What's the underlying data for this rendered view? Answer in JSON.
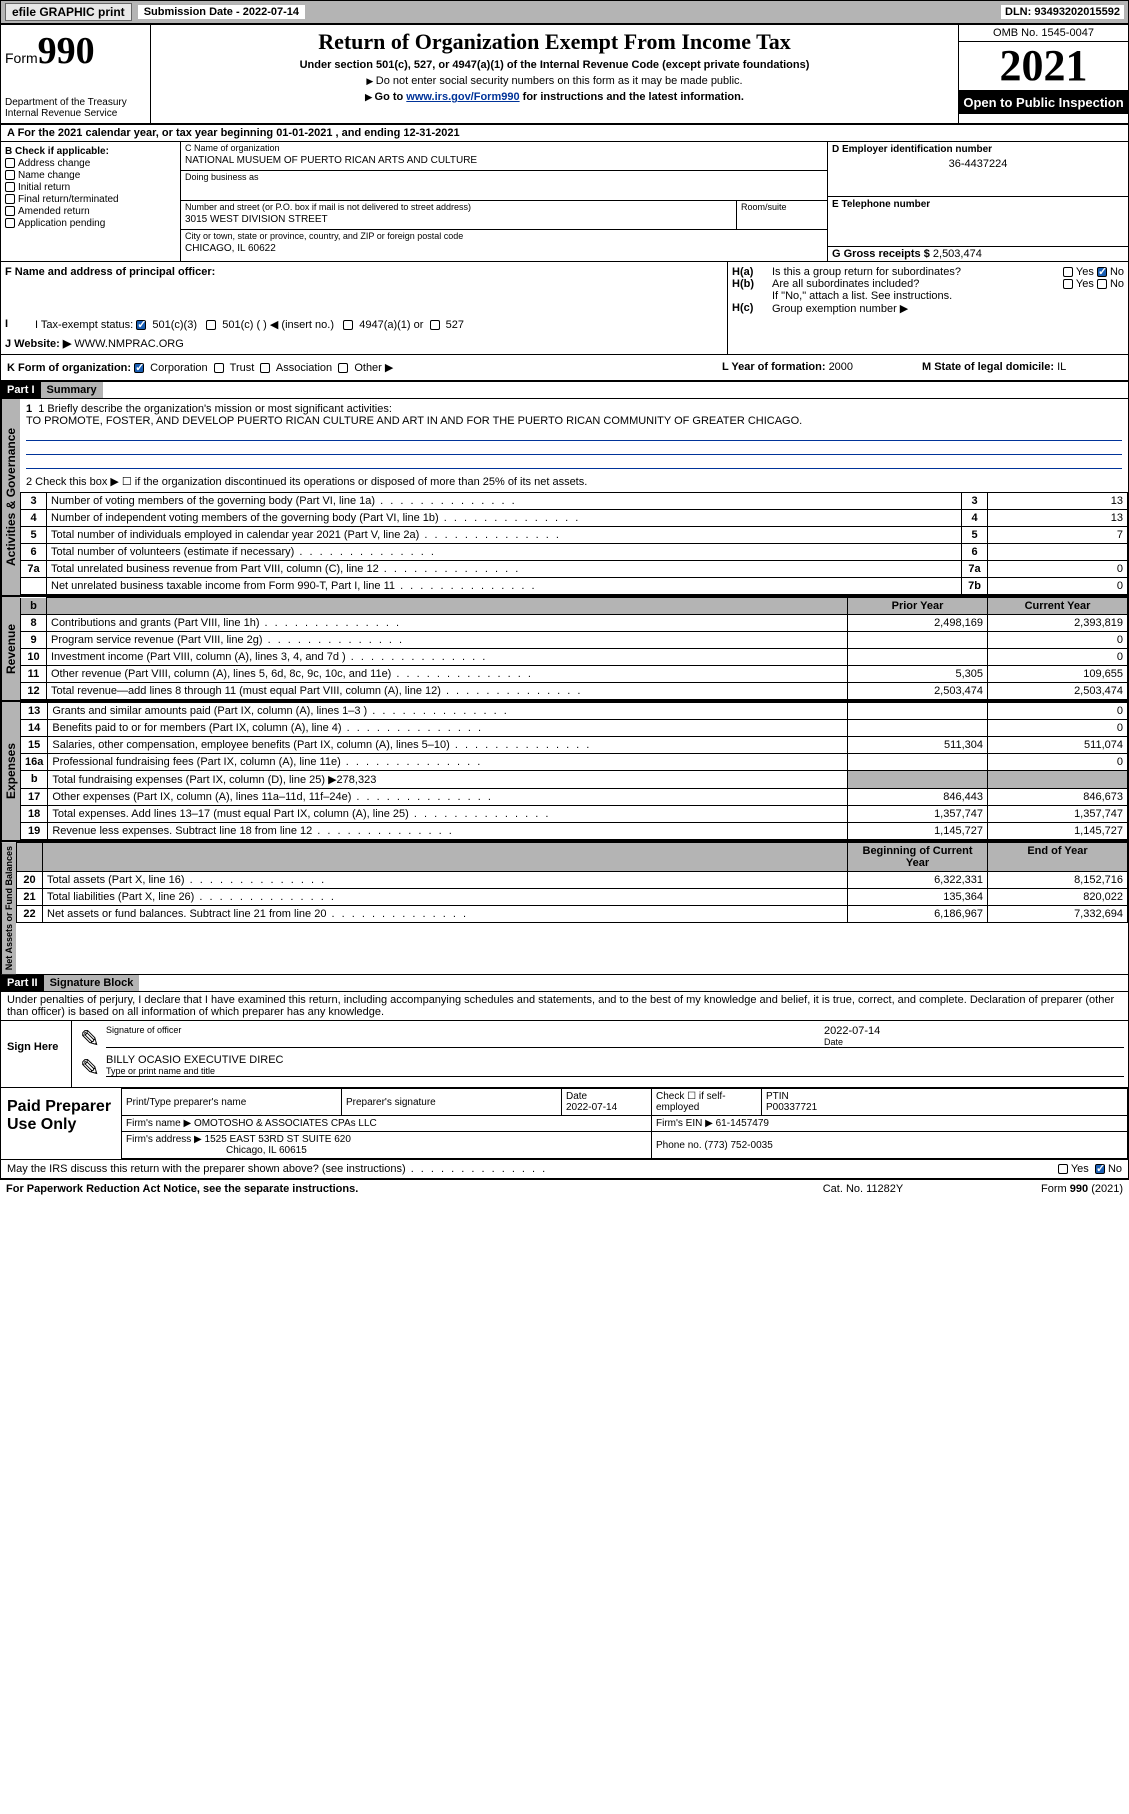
{
  "topbar": {
    "efile": "efile GRAPHIC print",
    "subdate_label": "Submission Date - ",
    "subdate": "2022-07-14",
    "dln_label": "DLN: ",
    "dln": "93493202015592"
  },
  "header": {
    "form_prefix": "Form",
    "form_num": "990",
    "dept": "Department of the Treasury\nInternal Revenue Service",
    "title": "Return of Organization Exempt From Income Tax",
    "sub1": "Under section 501(c), 527, or 4947(a)(1) of the Internal Revenue Code (except private foundations)",
    "sub2": "Do not enter social security numbers on this form as it may be made public.",
    "sub3_pre": "Go to ",
    "sub3_link": "www.irs.gov/Form990",
    "sub3_post": " for instructions and the latest information.",
    "omb": "OMB No. 1545-0047",
    "year": "2021",
    "open": "Open to Public Inspection"
  },
  "sectionA": {
    "a": "A For the 2021 calendar year, or tax year beginning 01-01-2021  , and ending 12-31-2021",
    "b_label": "B Check if applicable:",
    "b_opts": [
      "Address change",
      "Name change",
      "Initial return",
      "Final return/terminated",
      "Amended return",
      "Application pending"
    ],
    "c_name_lbl": "C Name of organization",
    "c_name": "NATIONAL MUSUEM OF PUERTO RICAN ARTS AND CULTURE",
    "dba_lbl": "Doing business as",
    "addr_lbl": "Number and street (or P.O. box if mail is not delivered to street address)",
    "room_lbl": "Room/suite",
    "addr": "3015 WEST DIVISION STREET",
    "city_lbl": "City or town, state or province, country, and ZIP or foreign postal code",
    "city": "CHICAGO, IL  60622",
    "d_lbl": "D Employer identification number",
    "d_val": "36-4437224",
    "e_lbl": "E Telephone number",
    "g_lbl": "G Gross receipts $ ",
    "g_val": "2,503,474",
    "f_lbl": "F  Name and address of principal officer:",
    "h_a": "H(a)  Is this a group return for subordinates?",
    "h_b": "H(b)  Are all subordinates included?",
    "h_b_note": "If \"No,\" attach a list. See instructions.",
    "h_c": "H(c)  Group exemption number ▶",
    "yes": "Yes",
    "no": "No",
    "i_lbl": "I   Tax-exempt status:",
    "i_501c3": "501(c)(3)",
    "i_501c": "501(c) (  ) ◀ (insert no.)",
    "i_4947": "4947(a)(1) or",
    "i_527": "527",
    "j_lbl": "J   Website: ▶",
    "j_val": "WWW.NMPRAC.ORG",
    "k_lbl": "K Form of organization:",
    "k_opts": [
      "Corporation",
      "Trust",
      "Association",
      "Other ▶"
    ],
    "l_lbl": "L Year of formation: ",
    "l_val": "2000",
    "m_lbl": "M State of legal domicile: ",
    "m_val": "IL"
  },
  "part1": {
    "hdr": "Part I",
    "title": "Summary",
    "line1_lbl": "1  Briefly describe the organization's mission or most significant activities:",
    "line1_val": "TO PROMOTE, FOSTER, AND DEVELOP PUERTO RICAN CULTURE AND ART IN AND FOR THE PUERTO RICAN COMMUNITY OF GREATER CHICAGO.",
    "line2": "2   Check this box ▶ ☐ if the organization discontinued its operations or disposed of more than 25% of its net assets.",
    "gov_tab": "Activities & Governance",
    "rev_tab": "Revenue",
    "exp_tab": "Expenses",
    "net_tab": "Net Assets or Fund Balances",
    "prior": "Prior Year",
    "current": "Current Year",
    "begin": "Beginning of Current Year",
    "end": "End of Year",
    "rows_gov": [
      {
        "n": "3",
        "t": "Number of voting members of the governing body (Part VI, line 1a)",
        "box": "3",
        "v": "13"
      },
      {
        "n": "4",
        "t": "Number of independent voting members of the governing body (Part VI, line 1b)",
        "box": "4",
        "v": "13"
      },
      {
        "n": "5",
        "t": "Total number of individuals employed in calendar year 2021 (Part V, line 2a)",
        "box": "5",
        "v": "7"
      },
      {
        "n": "6",
        "t": "Total number of volunteers (estimate if necessary)",
        "box": "6",
        "v": ""
      },
      {
        "n": "7a",
        "t": "Total unrelated business revenue from Part VIII, column (C), line 12",
        "box": "7a",
        "v": "0"
      },
      {
        "n": "",
        "t": "Net unrelated business taxable income from Form 990-T, Part I, line 11",
        "box": "7b",
        "v": "0"
      }
    ],
    "rows_rev": [
      {
        "n": "8",
        "t": "Contributions and grants (Part VIII, line 1h)",
        "p": "2,498,169",
        "c": "2,393,819"
      },
      {
        "n": "9",
        "t": "Program service revenue (Part VIII, line 2g)",
        "p": "",
        "c": "0"
      },
      {
        "n": "10",
        "t": "Investment income (Part VIII, column (A), lines 3, 4, and 7d )",
        "p": "",
        "c": "0"
      },
      {
        "n": "11",
        "t": "Other revenue (Part VIII, column (A), lines 5, 6d, 8c, 9c, 10c, and 11e)",
        "p": "5,305",
        "c": "109,655"
      },
      {
        "n": "12",
        "t": "Total revenue—add lines 8 through 11 (must equal Part VIII, column (A), line 12)",
        "p": "2,503,474",
        "c": "2,503,474"
      }
    ],
    "rows_exp": [
      {
        "n": "13",
        "t": "Grants and similar amounts paid (Part IX, column (A), lines 1–3 )",
        "p": "",
        "c": "0"
      },
      {
        "n": "14",
        "t": "Benefits paid to or for members (Part IX, column (A), line 4)",
        "p": "",
        "c": "0"
      },
      {
        "n": "15",
        "t": "Salaries, other compensation, employee benefits (Part IX, column (A), lines 5–10)",
        "p": "511,304",
        "c": "511,074"
      },
      {
        "n": "16a",
        "t": "Professional fundraising fees (Part IX, column (A), line 11e)",
        "p": "",
        "c": "0"
      },
      {
        "n": "b",
        "t": "Total fundraising expenses (Part IX, column (D), line 25) ▶278,323",
        "p": "__shade__",
        "c": "__shade__"
      },
      {
        "n": "17",
        "t": "Other expenses (Part IX, column (A), lines 11a–11d, 11f–24e)",
        "p": "846,443",
        "c": "846,673"
      },
      {
        "n": "18",
        "t": "Total expenses. Add lines 13–17 (must equal Part IX, column (A), line 25)",
        "p": "1,357,747",
        "c": "1,357,747"
      },
      {
        "n": "19",
        "t": "Revenue less expenses. Subtract line 18 from line 12",
        "p": "1,145,727",
        "c": "1,145,727"
      }
    ],
    "rows_net": [
      {
        "n": "20",
        "t": "Total assets (Part X, line 16)",
        "p": "6,322,331",
        "c": "8,152,716"
      },
      {
        "n": "21",
        "t": "Total liabilities (Part X, line 26)",
        "p": "135,364",
        "c": "820,022"
      },
      {
        "n": "22",
        "t": "Net assets or fund balances. Subtract line 21 from line 20",
        "p": "6,186,967",
        "c": "7,332,694"
      }
    ]
  },
  "part2": {
    "hdr": "Part II",
    "title": "Signature Block",
    "decl": "Under penalties of perjury, I declare that I have examined this return, including accompanying schedules and statements, and to the best of my knowledge and belief, it is true, correct, and complete. Declaration of preparer (other than officer) is based on all information of which preparer has any knowledge.",
    "sign_here": "Sign Here",
    "sig_officer": "Signature of officer",
    "sig_date": "2022-07-14",
    "date_lbl": "Date",
    "name_title": "BILLY OCASIO  EXECUTIVE DIREC",
    "name_title_lbl": "Type or print name and title",
    "paid": "Paid Preparer Use Only",
    "pt_name_lbl": "Print/Type preparer's name",
    "pt_sig_lbl": "Preparer's signature",
    "pt_date_lbl": "Date",
    "pt_date": "2022-07-14",
    "pt_check": "Check ☐ if self-employed",
    "ptin_lbl": "PTIN",
    "ptin": "P00337721",
    "firm_name_lbl": "Firm's name    ▶ ",
    "firm_name": "OMOTOSHO & ASSOCIATES CPAs LLC",
    "firm_ein_lbl": "Firm's EIN ▶ ",
    "firm_ein": "61-1457479",
    "firm_addr_lbl": "Firm's address ▶ ",
    "firm_addr": "1525 EAST 53RD ST SUITE 620",
    "firm_city": "Chicago, IL  60615",
    "phone_lbl": "Phone no. ",
    "phone": "(773) 752-0035",
    "may_irs": "May the IRS discuss this return with the preparer shown above? (see instructions)"
  },
  "footer": {
    "left": "For Paperwork Reduction Act Notice, see the separate instructions.",
    "mid": "Cat. No. 11282Y",
    "right": "Form 990 (2021)"
  }
}
